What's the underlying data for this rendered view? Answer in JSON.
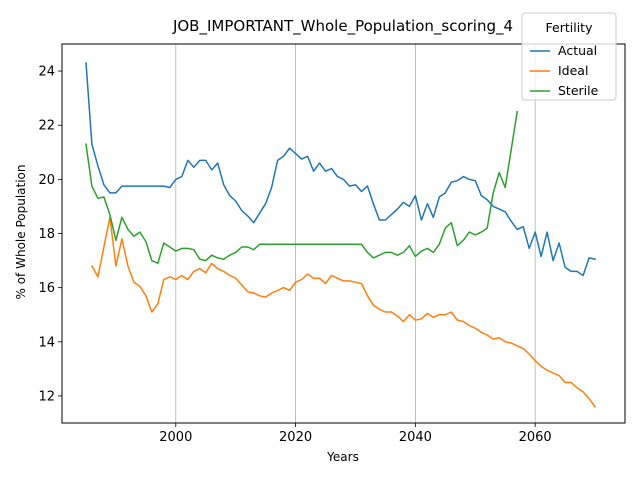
{
  "chart_data": {
    "type": "line",
    "title": "JOB_IMPORTANT_Whole_Population_scoring_4",
    "xlabel": "Years",
    "ylabel": "% of Whole Population",
    "xlim": [
      1981,
      2075
    ],
    "ylim": [
      11,
      25
    ],
    "xticks": [
      2000,
      2020,
      2040,
      2060
    ],
    "yticks": [
      12,
      14,
      16,
      18,
      20,
      22,
      24
    ],
    "grid": "x-only",
    "legend": {
      "title": "Fertility",
      "placement": "top-right"
    },
    "series": [
      {
        "name": "Actual",
        "color": "#1f77b4",
        "x": [
          1985,
          1986,
          1987,
          1988,
          1989,
          1990,
          1991,
          1992,
          1993,
          1994,
          1995,
          1996,
          1997,
          1998,
          1999,
          2000,
          2001,
          2002,
          2003,
          2004,
          2005,
          2006,
          2007,
          2008,
          2009,
          2010,
          2011,
          2012,
          2013,
          2014,
          2015,
          2016,
          2017,
          2018,
          2019,
          2020,
          2021,
          2022,
          2023,
          2024,
          2025,
          2026,
          2027,
          2028,
          2029,
          2030,
          2031,
          2032,
          2033,
          2034,
          2035,
          2036,
          2037,
          2038,
          2039,
          2040,
          2041,
          2042,
          2043,
          2044,
          2045,
          2046,
          2047,
          2048,
          2049,
          2050,
          2051,
          2052,
          2053,
          2054,
          2055,
          2056,
          2057,
          2058,
          2059,
          2060,
          2061,
          2062,
          2063,
          2064,
          2065,
          2066,
          2067,
          2068,
          2069,
          2070
        ],
        "y": [
          24.3,
          21.3,
          20.5,
          19.8,
          19.5,
          19.5,
          19.75,
          19.75,
          19.75,
          19.75,
          19.75,
          19.75,
          19.75,
          19.75,
          19.7,
          20.0,
          20.1,
          20.7,
          20.45,
          20.7,
          20.7,
          20.35,
          20.6,
          19.8,
          19.4,
          19.2,
          18.85,
          18.65,
          18.4,
          18.75,
          19.1,
          19.7,
          20.7,
          20.85,
          21.15,
          20.95,
          20.75,
          20.85,
          20.3,
          20.6,
          20.3,
          20.4,
          20.1,
          20.0,
          19.75,
          19.8,
          19.55,
          19.75,
          19.1,
          18.5,
          18.5,
          18.7,
          18.9,
          19.15,
          19.0,
          19.4,
          18.5,
          19.1,
          18.6,
          19.35,
          19.5,
          19.9,
          19.95,
          20.1,
          20.0,
          19.95,
          19.4,
          19.25,
          19.0,
          18.9,
          18.8,
          18.45,
          18.15,
          18.25,
          17.45,
          18.05,
          17.15,
          18.05,
          17.0,
          17.65,
          16.75,
          16.6,
          16.6,
          16.45,
          17.1,
          17.05
        ]
      },
      {
        "name": "Ideal",
        "color": "#ff7f0e",
        "x": [
          1986,
          1987,
          1988,
          1989,
          1990,
          1991,
          1992,
          1993,
          1994,
          1995,
          1996,
          1997,
          1998,
          1999,
          2000,
          2001,
          2002,
          2003,
          2004,
          2005,
          2006,
          2007,
          2008,
          2009,
          2010,
          2011,
          2012,
          2013,
          2014,
          2015,
          2016,
          2017,
          2018,
          2019,
          2020,
          2021,
          2022,
          2023,
          2024,
          2025,
          2026,
          2027,
          2028,
          2029,
          2030,
          2031,
          2032,
          2033,
          2034,
          2035,
          2036,
          2037,
          2038,
          2039,
          2040,
          2041,
          2042,
          2043,
          2044,
          2045,
          2046,
          2047,
          2048,
          2049,
          2050,
          2051,
          2052,
          2053,
          2054,
          2055,
          2056,
          2057,
          2058,
          2059,
          2060,
          2061,
          2062,
          2063,
          2064,
          2065,
          2066,
          2067,
          2068,
          2069,
          2070
        ],
        "y": [
          16.8,
          16.4,
          17.5,
          18.6,
          16.8,
          17.8,
          16.8,
          16.2,
          16.05,
          15.7,
          15.1,
          15.4,
          16.3,
          16.4,
          16.3,
          16.45,
          16.3,
          16.6,
          16.7,
          16.55,
          16.9,
          16.7,
          16.6,
          16.45,
          16.35,
          16.1,
          15.85,
          15.8,
          15.7,
          15.65,
          15.8,
          15.9,
          16.0,
          15.9,
          16.2,
          16.3,
          16.5,
          16.35,
          16.35,
          16.15,
          16.45,
          16.35,
          16.25,
          16.25,
          16.2,
          16.15,
          15.7,
          15.35,
          15.2,
          15.1,
          15.1,
          14.95,
          14.75,
          15.0,
          14.8,
          14.85,
          15.05,
          14.9,
          15.0,
          15.0,
          15.1,
          14.8,
          14.75,
          14.6,
          14.5,
          14.35,
          14.25,
          14.1,
          14.15,
          14.0,
          13.95,
          13.85,
          13.75,
          13.55,
          13.3,
          13.1,
          12.95,
          12.85,
          12.75,
          12.5,
          12.5,
          12.3,
          12.15,
          11.9,
          11.6
        ]
      },
      {
        "name": "Sterile",
        "color": "#2ca02c",
        "x": [
          1985,
          1986,
          1987,
          1988,
          1989,
          1990,
          1991,
          1992,
          1993,
          1994,
          1995,
          1996,
          1997,
          1998,
          1999,
          2000,
          2001,
          2002,
          2003,
          2004,
          2005,
          2006,
          2007,
          2008,
          2009,
          2010,
          2011,
          2012,
          2013,
          2014,
          2015,
          2016,
          2017,
          2018,
          2019,
          2020,
          2021,
          2022,
          2023,
          2024,
          2025,
          2026,
          2027,
          2028,
          2029,
          2030,
          2031,
          2032,
          2033,
          2034,
          2035,
          2036,
          2037,
          2038,
          2039,
          2040,
          2041,
          2042,
          2043,
          2044,
          2045,
          2046,
          2047,
          2048,
          2049,
          2050,
          2051,
          2052,
          2053,
          2054,
          2055,
          2056,
          2057
        ],
        "y": [
          21.3,
          19.75,
          19.3,
          19.35,
          18.7,
          17.75,
          18.6,
          18.15,
          17.9,
          18.05,
          17.7,
          17.0,
          16.9,
          17.65,
          17.5,
          17.35,
          17.45,
          17.45,
          17.4,
          17.05,
          17.0,
          17.2,
          17.1,
          17.05,
          17.2,
          17.3,
          17.5,
          17.5,
          17.4,
          17.6,
          17.6,
          17.6,
          17.6,
          17.6,
          17.6,
          17.6,
          17.6,
          17.6,
          17.6,
          17.6,
          17.6,
          17.6,
          17.6,
          17.6,
          17.6,
          17.6,
          17.6,
          17.3,
          17.1,
          17.2,
          17.3,
          17.3,
          17.2,
          17.3,
          17.55,
          17.15,
          17.35,
          17.45,
          17.3,
          17.6,
          18.2,
          18.4,
          17.55,
          17.75,
          18.05,
          17.95,
          18.05,
          18.2,
          19.5,
          20.25,
          19.7,
          21.1,
          22.5
        ]
      }
    ]
  }
}
